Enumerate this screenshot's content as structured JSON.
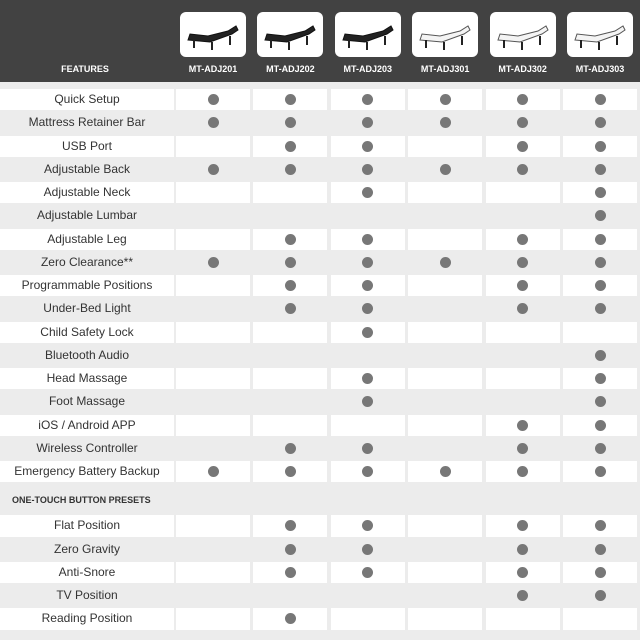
{
  "header": {
    "features_label": "FEATURES",
    "models": [
      "MT-ADJ201",
      "MT-ADJ202",
      "MT-ADJ203",
      "MT-ADJ301",
      "MT-ADJ302",
      "MT-ADJ303"
    ]
  },
  "features": [
    {
      "label": "Quick Setup",
      "has": [
        true,
        true,
        true,
        true,
        true,
        true
      ]
    },
    {
      "label": "Mattress Retainer Bar",
      "has": [
        true,
        true,
        true,
        true,
        true,
        true
      ]
    },
    {
      "label": "USB Port",
      "has": [
        false,
        true,
        true,
        false,
        true,
        true
      ]
    },
    {
      "label": "Adjustable Back",
      "has": [
        true,
        true,
        true,
        true,
        true,
        true
      ]
    },
    {
      "label": "Adjustable Neck",
      "has": [
        false,
        false,
        true,
        false,
        false,
        true
      ]
    },
    {
      "label": "Adjustable Lumbar",
      "has": [
        false,
        false,
        false,
        false,
        false,
        true
      ]
    },
    {
      "label": "Adjustable Leg",
      "has": [
        false,
        true,
        true,
        false,
        true,
        true
      ]
    },
    {
      "label": "Zero Clearance**",
      "has": [
        true,
        true,
        true,
        true,
        true,
        true
      ]
    },
    {
      "label": "Programmable Positions",
      "has": [
        false,
        true,
        true,
        false,
        true,
        true
      ]
    },
    {
      "label": "Under-Bed Light",
      "has": [
        false,
        true,
        true,
        false,
        true,
        true
      ]
    },
    {
      "label": "Child Safety Lock",
      "has": [
        false,
        false,
        true,
        false,
        false,
        false
      ]
    },
    {
      "label": "Bluetooth Audio",
      "has": [
        false,
        false,
        false,
        false,
        false,
        true
      ]
    },
    {
      "label": "Head Massage",
      "has": [
        false,
        false,
        true,
        false,
        false,
        true
      ]
    },
    {
      "label": "Foot Massage",
      "has": [
        false,
        false,
        true,
        false,
        false,
        true
      ]
    },
    {
      "label": "iOS / Android APP",
      "has": [
        false,
        false,
        false,
        false,
        true,
        true
      ]
    },
    {
      "label": "Wireless Controller",
      "has": [
        false,
        true,
        true,
        false,
        true,
        true
      ]
    },
    {
      "label": "Emergency Battery Backup",
      "has": [
        true,
        true,
        true,
        true,
        true,
        true
      ]
    }
  ],
  "presets": {
    "title": "ONE-TOUCH BUTTON PRESETS",
    "rows": [
      {
        "label": "Flat Position",
        "has": [
          false,
          true,
          true,
          false,
          true,
          true
        ]
      },
      {
        "label": "Zero Gravity",
        "has": [
          false,
          true,
          true,
          false,
          true,
          true
        ]
      },
      {
        "label": "Anti-Snore",
        "has": [
          false,
          true,
          true,
          false,
          true,
          true
        ]
      },
      {
        "label": "TV Position",
        "has": [
          false,
          false,
          false,
          false,
          true,
          true
        ]
      },
      {
        "label": "Reading Position",
        "has": [
          false,
          true,
          false,
          false,
          false,
          false
        ]
      }
    ]
  }
}
